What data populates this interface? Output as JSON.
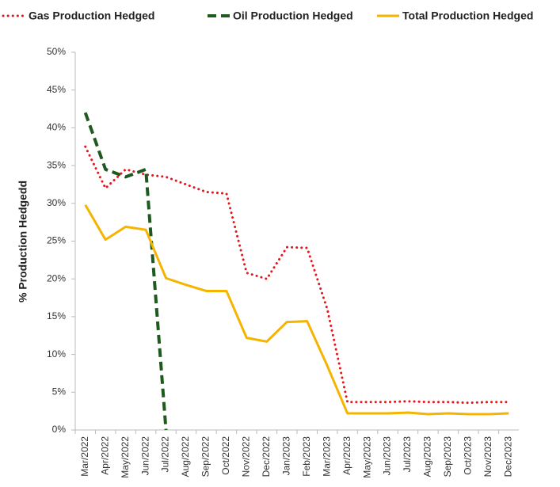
{
  "chart_data": {
    "type": "line",
    "y_label": "% Production Hedgedd",
    "categories": [
      "Mar/2022",
      "Apr/2022",
      "May/2022",
      "Jun/2022",
      "Jul/2022",
      "Aug/2022",
      "Sep/2022",
      "Oct/2022",
      "Nov/2022",
      "Dec/2022",
      "Jan/2023",
      "Feb/2023",
      "Mar/2023",
      "Apr/2023",
      "May/2023",
      "Jun/2023",
      "Jul/2023",
      "Aug/2023",
      "Sep/2023",
      "Oct/2023",
      "Nov/2023",
      "Dec/2023"
    ],
    "series": [
      {
        "name": "Gas Production Hedged",
        "color": "#e8141c",
        "style": "dotted",
        "values": [
          37.5,
          32,
          34.5,
          33.8,
          33.5,
          32.5,
          31.5,
          31.3,
          20.8,
          20,
          24.2,
          24.1,
          16,
          3.7,
          3.7,
          3.7,
          3.8,
          3.7,
          3.7,
          3.6,
          3.7,
          3.7
        ]
      },
      {
        "name": "Oil Production Hedged",
        "color": "#1e5a1e",
        "style": "dashed",
        "values": [
          42,
          34.5,
          33.5,
          34.5,
          0,
          null,
          null,
          null,
          null,
          null,
          null,
          null,
          null,
          null,
          null,
          null,
          null,
          null,
          null,
          null,
          null,
          null
        ]
      },
      {
        "name": "Total Production Hedged",
        "color": "#f5b400",
        "style": "solid",
        "values": [
          29.8,
          25.2,
          26.9,
          26.5,
          20.1,
          19.2,
          18.4,
          18.4,
          12.2,
          11.7,
          14.3,
          14.4,
          8.5,
          2.2,
          2.2,
          2.2,
          2.3,
          2.1,
          2.2,
          2.1,
          2.1,
          2.2
        ]
      }
    ],
    "ylim": [
      0,
      50
    ],
    "yticks": [
      {
        "value": 0,
        "label": "0%"
      },
      {
        "value": 5,
        "label": "5%"
      },
      {
        "value": 10,
        "label": "10%"
      },
      {
        "value": 15,
        "label": "15%"
      },
      {
        "value": 20,
        "label": "20%"
      },
      {
        "value": 25,
        "label": "25%"
      },
      {
        "value": 30,
        "label": "30%"
      },
      {
        "value": 35,
        "label": "35%"
      },
      {
        "value": 40,
        "label": "40%"
      },
      {
        "value": 45,
        "label": "45%"
      },
      {
        "value": 50,
        "label": "50%"
      }
    ],
    "grid": false,
    "legend": "top"
  }
}
